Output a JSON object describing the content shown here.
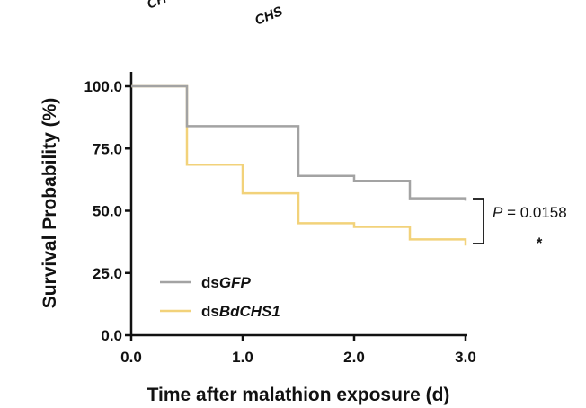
{
  "top_labels": [
    "CH",
    "CHS"
  ],
  "chart_data": {
    "type": "line",
    "step": true,
    "xlabel": "Time after malathion exposure (d)",
    "ylabel": "Survival Probability (%)",
    "xlim": [
      0,
      3
    ],
    "ylim": [
      0,
      100
    ],
    "x_ticks": [
      "0.0",
      "1.0",
      "2.0",
      "3.0"
    ],
    "y_ticks": [
      "0.0",
      "25.0",
      "50.0",
      "75.0",
      "100.0"
    ],
    "series": [
      {
        "name_prefix": "ds",
        "name_italic": "GFP",
        "color": "#a3a3a3",
        "points": [
          [
            0,
            100
          ],
          [
            0.5,
            84
          ],
          [
            1.5,
            64
          ],
          [
            2.0,
            62
          ],
          [
            2.5,
            55
          ],
          [
            3.0,
            54
          ]
        ]
      },
      {
        "name_prefix": "ds",
        "name_italic": "BdCHS1",
        "color": "#f2d27a",
        "points": [
          [
            0,
            100
          ],
          [
            0.5,
            68.5
          ],
          [
            1.0,
            57
          ],
          [
            1.5,
            45
          ],
          [
            2.0,
            43.5
          ],
          [
            2.5,
            38.5
          ],
          [
            3.0,
            36
          ]
        ]
      }
    ],
    "annotation": {
      "p_label": "P",
      "p_value": " = 0.0158",
      "significance": "*"
    },
    "grid": false,
    "legend": "bottom-left"
  }
}
